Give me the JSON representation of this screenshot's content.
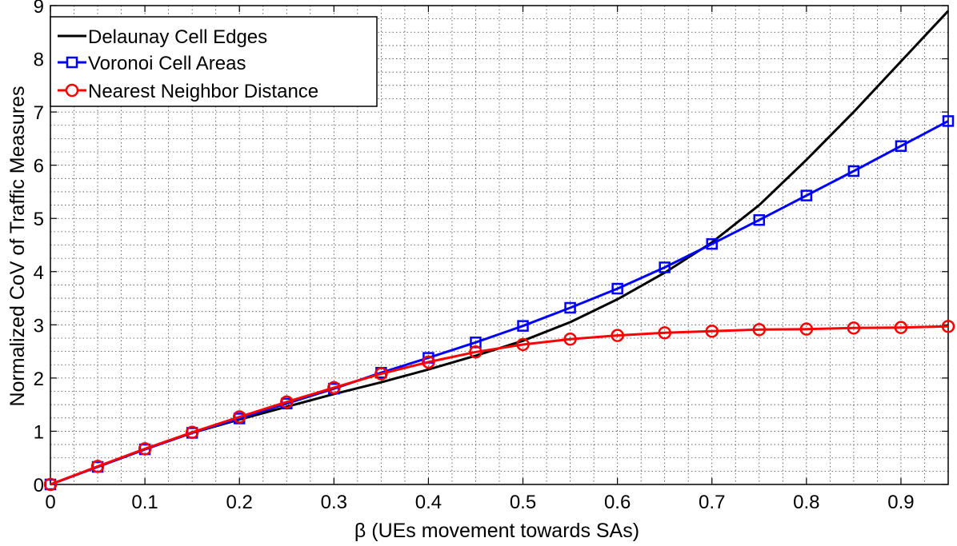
{
  "chart_data": {
    "type": "line",
    "title": "",
    "xlabel": "β (UEs movement towards SAs)",
    "ylabel": "Normalized CoV of Traffic Measures",
    "xlim": [
      0,
      0.95
    ],
    "ylim": [
      0,
      9
    ],
    "xticks": [
      0,
      0.1,
      0.2,
      0.3,
      0.4,
      0.5,
      0.6,
      0.7,
      0.8,
      0.9
    ],
    "xtick_labels": [
      "0",
      "0.1",
      "0.2",
      "0.3",
      "0.4",
      "0.5",
      "0.6",
      "0.7",
      "0.8",
      "0.9"
    ],
    "yticks": [
      0,
      1,
      2,
      3,
      4,
      5,
      6,
      7,
      8,
      9
    ],
    "ytick_labels": [
      "0",
      "1",
      "2",
      "3",
      "4",
      "5",
      "6",
      "7",
      "8",
      "9"
    ],
    "grid": true,
    "legend_position": "top-left",
    "x": [
      0,
      0.05,
      0.1,
      0.15,
      0.2,
      0.25,
      0.3,
      0.35,
      0.4,
      0.45,
      0.5,
      0.55,
      0.6,
      0.65,
      0.7,
      0.75,
      0.8,
      0.85,
      0.9,
      0.95
    ],
    "series": [
      {
        "name": "Delaunay Cell Edges",
        "color": "#000000",
        "marker": "none",
        "values": [
          0,
          0.33,
          0.66,
          0.97,
          1.22,
          1.46,
          1.7,
          1.92,
          2.16,
          2.42,
          2.7,
          3.05,
          3.48,
          3.98,
          4.55,
          5.25,
          6.1,
          7.0,
          7.95,
          8.9
        ]
      },
      {
        "name": "Voronoi Cell Areas",
        "color": "#0000ff",
        "marker": "square",
        "values": [
          0,
          0.33,
          0.66,
          0.97,
          1.24,
          1.52,
          1.8,
          2.1,
          2.38,
          2.67,
          2.98,
          3.32,
          3.68,
          4.08,
          4.52,
          4.97,
          5.43,
          5.89,
          6.36,
          6.83
        ]
      },
      {
        "name": "Nearest Neighbor Distance",
        "color": "#ff0000",
        "marker": "circle",
        "values": [
          0,
          0.34,
          0.67,
          0.98,
          1.27,
          1.55,
          1.82,
          2.08,
          2.3,
          2.49,
          2.63,
          2.73,
          2.8,
          2.85,
          2.88,
          2.91,
          2.92,
          2.94,
          2.95,
          2.97
        ]
      }
    ]
  }
}
